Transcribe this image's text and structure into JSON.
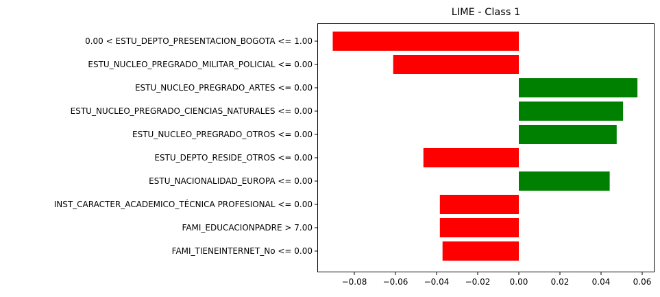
{
  "chart_data": {
    "type": "bar",
    "orientation": "horizontal",
    "title": "LIME - Class 1",
    "xlabel": "",
    "ylabel": "",
    "xlim": [
      -0.098,
      0.066
    ],
    "xticks": [
      -0.08,
      -0.06,
      -0.04,
      -0.02,
      0.0,
      0.02,
      0.04,
      0.06
    ],
    "xtick_labels": [
      "−0.08",
      "−0.06",
      "−0.04",
      "−0.02",
      "0.00",
      "0.02",
      "0.04",
      "0.06"
    ],
    "grid": false,
    "legend": "none",
    "categories": [
      "0.00 < ESTU_DEPTO_PRESENTACION_BOGOTA <= 1.00",
      "ESTU_NUCLEO_PREGRADO_MILITAR_POLICIAL <= 0.00",
      "ESTU_NUCLEO_PREGRADO_ARTES <= 0.00",
      "ESTU_NUCLEO_PREGRADO_CIENCIAS_NATURALES <= 0.00",
      "ESTU_NUCLEO_PREGRADO_OTROS <= 0.00",
      "ESTU_DEPTO_RESIDE_OTROS <= 0.00",
      "ESTU_NACIONALIDAD_EUROPA <= 0.00",
      "INST_CARACTER_ACADEMICO_TÉCNICA PROFESIONAL <= 0.00",
      "FAMI_EDUCACIONPADRE > 7.00",
      "FAMI_TIENEINTERNET_No <= 0.00"
    ],
    "values": [
      -0.0905,
      -0.0611,
      0.0577,
      0.0507,
      0.0476,
      -0.0464,
      0.0442,
      -0.0384,
      -0.0384,
      -0.0371
    ],
    "colors": {
      "positive": "#008000",
      "negative": "#ff0000"
    }
  }
}
